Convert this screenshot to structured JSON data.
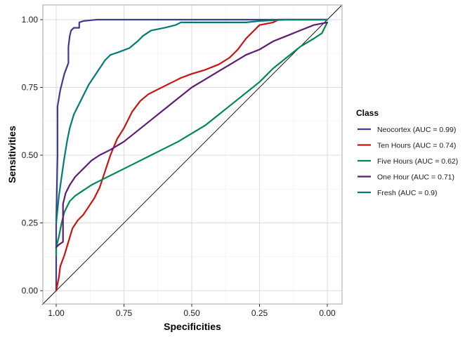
{
  "chart_data": {
    "type": "line",
    "title": "",
    "xlabel": "Specificities",
    "ylabel": "Sensitivities",
    "xlim": [
      1.0,
      0.0
    ],
    "ylim": [
      0.0,
      1.0
    ],
    "x_reversed": true,
    "xticks": [
      "1.00",
      "0.75",
      "0.50",
      "0.25",
      "0.00"
    ],
    "yticks": [
      "0.00",
      "0.25",
      "0.50",
      "0.75",
      "1.00"
    ],
    "grid": true,
    "legend_title": "Class",
    "legend_position": "right",
    "reference_line": {
      "from": [
        1.0,
        0.0
      ],
      "to": [
        0.0,
        1.0
      ],
      "color": "#000000"
    },
    "series": [
      {
        "name": "Neocortex (AUC = 0.99)",
        "color": "#3d3d8f",
        "points": [
          [
            1.0,
            0.0
          ],
          [
            1.0,
            0.25
          ],
          [
            0.995,
            0.5
          ],
          [
            0.995,
            0.68
          ],
          [
            0.985,
            0.74
          ],
          [
            0.97,
            0.8
          ],
          [
            0.955,
            0.84
          ],
          [
            0.955,
            0.9
          ],
          [
            0.95,
            0.94
          ],
          [
            0.945,
            0.96
          ],
          [
            0.935,
            0.97
          ],
          [
            0.915,
            0.97
          ],
          [
            0.915,
            0.99
          ],
          [
            0.9,
            0.995
          ],
          [
            0.85,
            1.0
          ],
          [
            0.7,
            1.0
          ],
          [
            0.5,
            1.0
          ],
          [
            0.2,
            1.0
          ],
          [
            0.0,
            1.0
          ]
        ]
      },
      {
        "name": "Ten Hours (AUC = 0.74)",
        "color": "#cc1111",
        "points": [
          [
            1.0,
            0.0
          ],
          [
            0.99,
            0.05
          ],
          [
            0.985,
            0.09
          ],
          [
            0.97,
            0.13
          ],
          [
            0.955,
            0.18
          ],
          [
            0.94,
            0.23
          ],
          [
            0.92,
            0.26
          ],
          [
            0.9,
            0.28
          ],
          [
            0.88,
            0.31
          ],
          [
            0.86,
            0.34
          ],
          [
            0.84,
            0.38
          ],
          [
            0.82,
            0.44
          ],
          [
            0.8,
            0.5
          ],
          [
            0.775,
            0.56
          ],
          [
            0.75,
            0.6
          ],
          [
            0.72,
            0.66
          ],
          [
            0.69,
            0.7
          ],
          [
            0.66,
            0.725
          ],
          [
            0.62,
            0.745
          ],
          [
            0.58,
            0.765
          ],
          [
            0.54,
            0.785
          ],
          [
            0.5,
            0.8
          ],
          [
            0.45,
            0.815
          ],
          [
            0.4,
            0.835
          ],
          [
            0.36,
            0.86
          ],
          [
            0.33,
            0.89
          ],
          [
            0.3,
            0.93
          ],
          [
            0.27,
            0.96
          ],
          [
            0.25,
            0.98
          ],
          [
            0.2,
            0.99
          ],
          [
            0.18,
            1.0
          ],
          [
            0.0,
            1.0
          ]
        ]
      },
      {
        "name": "Five Hours (AUC = 0.62)",
        "color": "#008855",
        "points": [
          [
            1.0,
            0.13
          ],
          [
            1.0,
            0.16
          ],
          [
            0.99,
            0.2
          ],
          [
            0.98,
            0.25
          ],
          [
            0.97,
            0.29
          ],
          [
            0.96,
            0.31
          ],
          [
            0.95,
            0.33
          ],
          [
            0.93,
            0.35
          ],
          [
            0.9,
            0.37
          ],
          [
            0.87,
            0.39
          ],
          [
            0.83,
            0.41
          ],
          [
            0.79,
            0.43
          ],
          [
            0.75,
            0.45
          ],
          [
            0.7,
            0.475
          ],
          [
            0.65,
            0.5
          ],
          [
            0.6,
            0.525
          ],
          [
            0.55,
            0.55
          ],
          [
            0.5,
            0.58
          ],
          [
            0.45,
            0.61
          ],
          [
            0.4,
            0.65
          ],
          [
            0.35,
            0.69
          ],
          [
            0.3,
            0.73
          ],
          [
            0.25,
            0.77
          ],
          [
            0.2,
            0.82
          ],
          [
            0.15,
            0.86
          ],
          [
            0.1,
            0.9
          ],
          [
            0.05,
            0.93
          ],
          [
            0.02,
            0.95
          ],
          [
            0.0,
            0.99
          ]
        ]
      },
      {
        "name": "One Hour (AUC = 0.71)",
        "color": "#5e1b73",
        "points": [
          [
            1.0,
            0.16
          ],
          [
            0.99,
            0.17
          ],
          [
            0.975,
            0.18
          ],
          [
            0.975,
            0.32
          ],
          [
            0.965,
            0.36
          ],
          [
            0.95,
            0.39
          ],
          [
            0.93,
            0.42
          ],
          [
            0.9,
            0.45
          ],
          [
            0.87,
            0.48
          ],
          [
            0.84,
            0.5
          ],
          [
            0.8,
            0.52
          ],
          [
            0.75,
            0.55
          ],
          [
            0.7,
            0.59
          ],
          [
            0.65,
            0.63
          ],
          [
            0.6,
            0.67
          ],
          [
            0.55,
            0.71
          ],
          [
            0.5,
            0.75
          ],
          [
            0.45,
            0.78
          ],
          [
            0.4,
            0.81
          ],
          [
            0.35,
            0.84
          ],
          [
            0.3,
            0.87
          ],
          [
            0.25,
            0.89
          ],
          [
            0.2,
            0.92
          ],
          [
            0.15,
            0.94
          ],
          [
            0.1,
            0.96
          ],
          [
            0.05,
            0.98
          ],
          [
            0.0,
            0.99
          ]
        ]
      },
      {
        "name": "Fresh (AUC = 0.9)",
        "color": "#007a7a",
        "points": [
          [
            1.0,
            0.25
          ],
          [
            0.99,
            0.35
          ],
          [
            0.98,
            0.42
          ],
          [
            0.97,
            0.49
          ],
          [
            0.96,
            0.55
          ],
          [
            0.95,
            0.6
          ],
          [
            0.935,
            0.65
          ],
          [
            0.92,
            0.68
          ],
          [
            0.9,
            0.72
          ],
          [
            0.88,
            0.76
          ],
          [
            0.86,
            0.79
          ],
          [
            0.84,
            0.82
          ],
          [
            0.82,
            0.85
          ],
          [
            0.8,
            0.87
          ],
          [
            0.77,
            0.88
          ],
          [
            0.73,
            0.895
          ],
          [
            0.7,
            0.92
          ],
          [
            0.68,
            0.94
          ],
          [
            0.65,
            0.96
          ],
          [
            0.6,
            0.97
          ],
          [
            0.56,
            0.98
          ],
          [
            0.54,
            0.99
          ],
          [
            0.45,
            0.99
          ],
          [
            0.3,
            0.99
          ],
          [
            0.25,
            0.995
          ],
          [
            0.15,
            1.0
          ],
          [
            0.0,
            1.0
          ]
        ]
      }
    ]
  }
}
